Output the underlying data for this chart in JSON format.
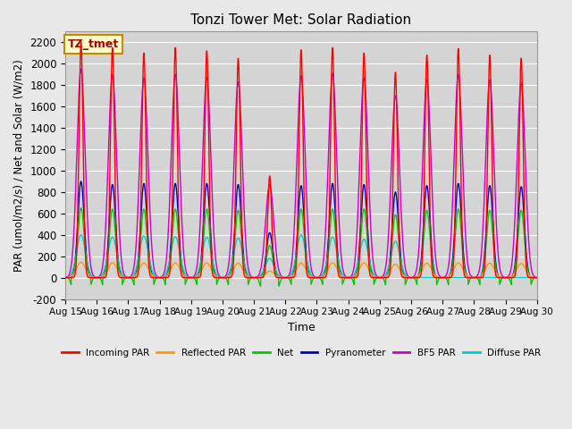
{
  "title": "Tonzi Tower Met: Solar Radiation",
  "ylabel": "PAR (umol/m2/s) / Net and Solar (W/m2)",
  "xlabel": "Time",
  "ylim": [
    -200,
    2300
  ],
  "background_color": "#e8e8e8",
  "plot_bg_color": "#d4d4d4",
  "grid_color": "#ffffff",
  "annotation_text": "TZ_tmet",
  "annotation_bg": "#ffffcc",
  "annotation_border": "#cc8800",
  "series": {
    "incoming_par": {
      "label": "Incoming PAR",
      "color": "#ff0000"
    },
    "reflected_par": {
      "label": "Reflected PAR",
      "color": "#ff9900"
    },
    "net": {
      "label": "Net",
      "color": "#00cc00"
    },
    "pyranometer": {
      "label": "Pyranometer",
      "color": "#0000cc"
    },
    "bf5_par": {
      "label": "BF5 PAR",
      "color": "#cc00cc"
    },
    "diffuse_par": {
      "label": "Diffuse PAR",
      "color": "#00cccc"
    }
  },
  "xtick_labels": [
    "Aug 15",
    "Aug 16",
    "Aug 17",
    "Aug 18",
    "Aug 19",
    "Aug 20",
    "Aug 21",
    "Aug 22",
    "Aug 23",
    "Aug 24",
    "Aug 25",
    "Aug 26",
    "Aug 27",
    "Aug 28",
    "Aug 29",
    "Aug 30"
  ],
  "ytick_values": [
    -200,
    0,
    200,
    400,
    600,
    800,
    1000,
    1200,
    1400,
    1600,
    1800,
    2000,
    2200
  ],
  "incoming_peaks": [
    2200,
    2150,
    2100,
    2150,
    2120,
    2050,
    950,
    2130,
    2150,
    2100,
    1920,
    2080,
    2140,
    2080,
    2050
  ],
  "pyranometer_peaks": [
    900,
    870,
    880,
    880,
    880,
    870,
    420,
    860,
    880,
    870,
    800,
    860,
    880,
    860,
    850
  ],
  "net_peaks": [
    650,
    640,
    640,
    640,
    640,
    630,
    300,
    640,
    640,
    640,
    590,
    630,
    640,
    630,
    630
  ],
  "reflected_peaks": [
    145,
    140,
    138,
    140,
    138,
    135,
    62,
    138,
    140,
    138,
    125,
    135,
    138,
    135,
    133
  ],
  "bf5_peaks": [
    1950,
    1900,
    1870,
    1900,
    1870,
    1830,
    870,
    1890,
    1910,
    1870,
    1700,
    1850,
    1900,
    1850,
    1820
  ],
  "diffuse_peaks": [
    400,
    380,
    390,
    385,
    380,
    370,
    180,
    400,
    380,
    360,
    340,
    0,
    0,
    0,
    0
  ],
  "net_negative": [
    -80,
    -80,
    -80,
    -80,
    -80,
    -80,
    -80,
    -80,
    -80,
    -80,
    -80,
    -80,
    -80,
    -80,
    -80
  ]
}
